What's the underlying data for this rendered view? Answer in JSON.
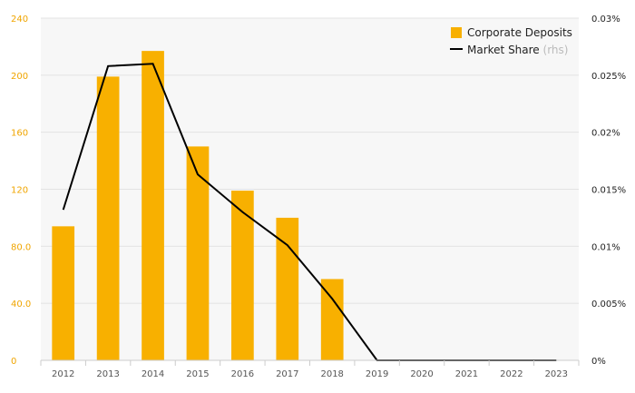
{
  "chart_data": {
    "type": "bar+line",
    "categories": [
      "2012",
      "2013",
      "2014",
      "2015",
      "2016",
      "2017",
      "2018",
      "2019",
      "2020",
      "2021",
      "2022",
      "2023"
    ],
    "series": [
      {
        "name": "Corporate Deposits",
        "type": "bar",
        "axis": "left",
        "color": "#f8b000",
        "values": [
          94,
          199,
          217,
          150,
          119,
          100,
          57,
          0,
          0,
          0,
          0,
          0
        ]
      },
      {
        "name": "Market Share",
        "type": "line",
        "axis": "right",
        "color": "#000000",
        "values": [
          0.0132,
          0.0258,
          0.026,
          0.0163,
          0.013,
          0.0101,
          0.0054,
          0,
          0,
          0,
          0,
          0
        ]
      }
    ],
    "legend": [
      {
        "label": "Corporate Deposits",
        "suffix": ""
      },
      {
        "label": "Market Share",
        "suffix": "(rhs)"
      }
    ],
    "left_axis": {
      "ticks": [
        "0",
        "40.0",
        "80.0",
        "120",
        "160",
        "200",
        "240"
      ],
      "range": [
        0,
        240
      ],
      "color": "#f0a500"
    },
    "right_axis": {
      "ticks": [
        "0%",
        "0.005%",
        "0.01%",
        "0.015%",
        "0.02%",
        "0.025%",
        "0.03%"
      ],
      "range": [
        0,
        0.03
      ]
    },
    "grid": true,
    "legend_position": "top-right"
  }
}
